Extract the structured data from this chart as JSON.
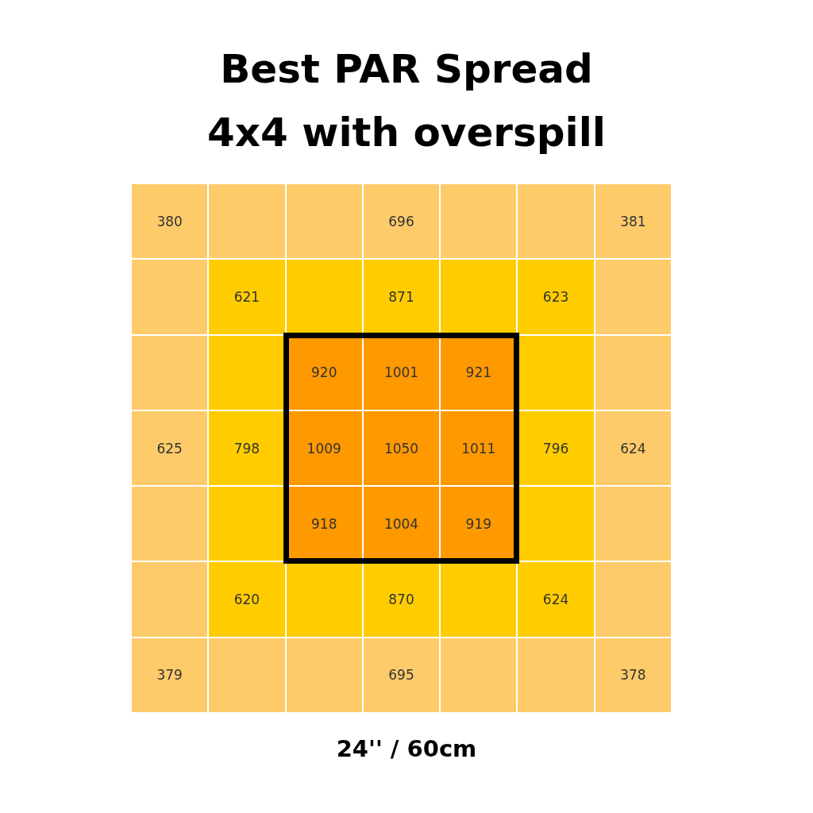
{
  "chart_data": {
    "type": "other",
    "title": "Best PAR Spread",
    "subtitle": "4x4 with overspill",
    "xlabel": "24'' / 60cm",
    "categories": [
      null,
      null,
      null,
      null,
      null,
      null,
      null,
      null,
      null,
      null,
      null,
      null,
      null,
      null,
      null,
      null,
      null,
      null,
      null,
      null,
      null,
      null,
      null,
      null,
      null
    ],
    "values": [
      380,
      696,
      381,
      621,
      871,
      623,
      920,
      1001,
      921,
      625,
      798,
      1009,
      1050,
      1011,
      796,
      624,
      918,
      1004,
      919,
      620,
      870,
      624,
      379,
      695,
      378
    ],
    "data_labels": true
  }
}
